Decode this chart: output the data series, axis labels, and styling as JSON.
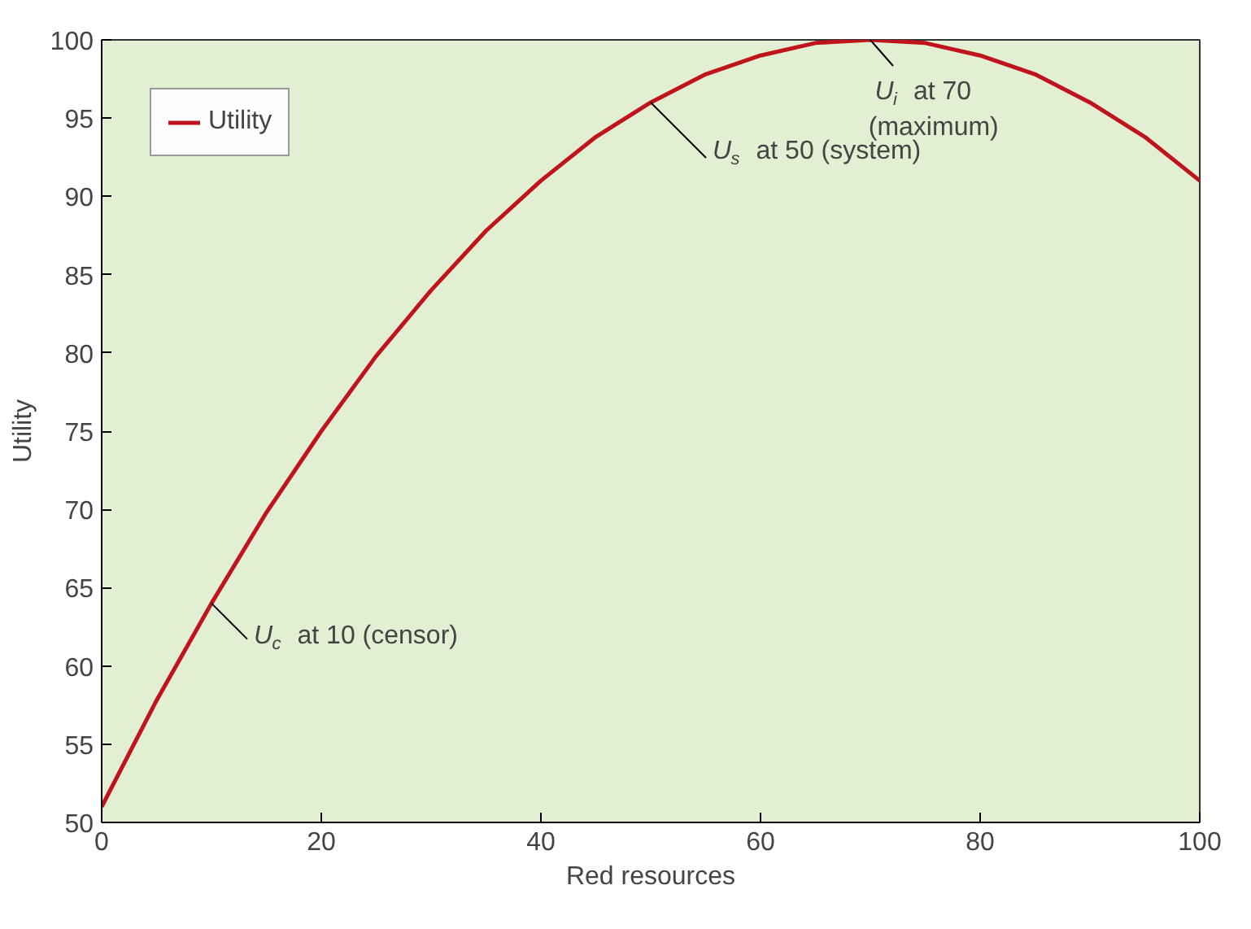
{
  "chart_data": {
    "type": "line",
    "xlabel": "Red resources",
    "ylabel": "Utility",
    "x": [
      0,
      5,
      10,
      15,
      20,
      25,
      30,
      35,
      40,
      45,
      50,
      55,
      60,
      65,
      70,
      75,
      80,
      85,
      90,
      95,
      100
    ],
    "series": [
      {
        "name": "Utility",
        "color": "#c0141c",
        "values": [
          51,
          57.8,
          64,
          69.8,
          75,
          79.8,
          84,
          87.8,
          91,
          93.8,
          96,
          97.8,
          99,
          99.8,
          100,
          99.8,
          99,
          97.8,
          96,
          93.8,
          91
        ]
      }
    ],
    "xlim": [
      0,
      100
    ],
    "ylim": [
      50,
      100
    ],
    "xticks": [
      0,
      20,
      40,
      60,
      80,
      100
    ],
    "yticks": [
      50,
      55,
      60,
      65,
      70,
      75,
      80,
      85,
      90,
      95,
      100
    ],
    "annotations": [
      {
        "text": "U$_{c}$ at 10 (censor)",
        "x": 10,
        "y": 64
      },
      {
        "text": "U$_{s}$ at 50 (system)",
        "x": 50,
        "y": 96
      },
      {
        "text": "U$_{i}$ at 70\n(maximum)",
        "x": 70,
        "y": 100
      }
    ],
    "grid": false,
    "legend": "top left",
    "marker": "none",
    "line_style": "solid"
  }
}
